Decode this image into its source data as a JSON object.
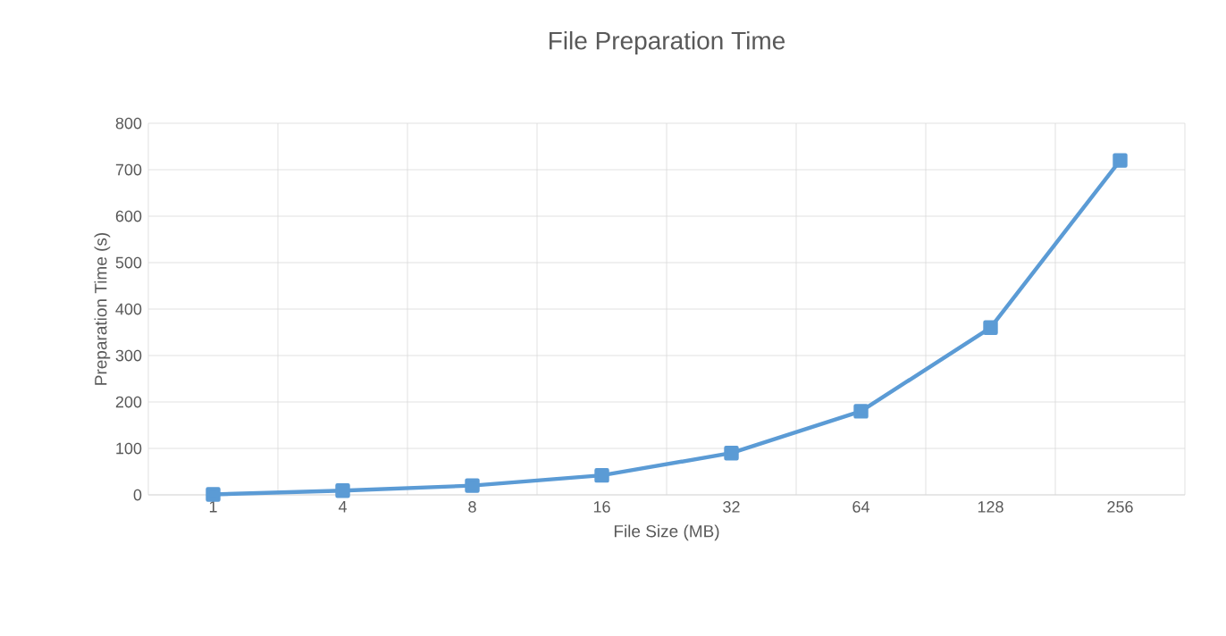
{
  "chart_data": {
    "type": "line",
    "title": "File Preparation Time",
    "xlabel": "File Size (MB)",
    "ylabel": "Preparation Time  (s)",
    "categories": [
      "1",
      "4",
      "8",
      "16",
      "32",
      "64",
      "128",
      "256"
    ],
    "series": [
      {
        "color": "#5b9bd5",
        "values": [
          1,
          9,
          20,
          42,
          90,
          180,
          360,
          720
        ]
      }
    ],
    "ylim": [
      0,
      800
    ],
    "yticks": [
      0,
      100,
      200,
      300,
      400,
      500,
      600,
      700,
      800
    ],
    "grid": true,
    "marker": "square",
    "line_style": "solid"
  }
}
